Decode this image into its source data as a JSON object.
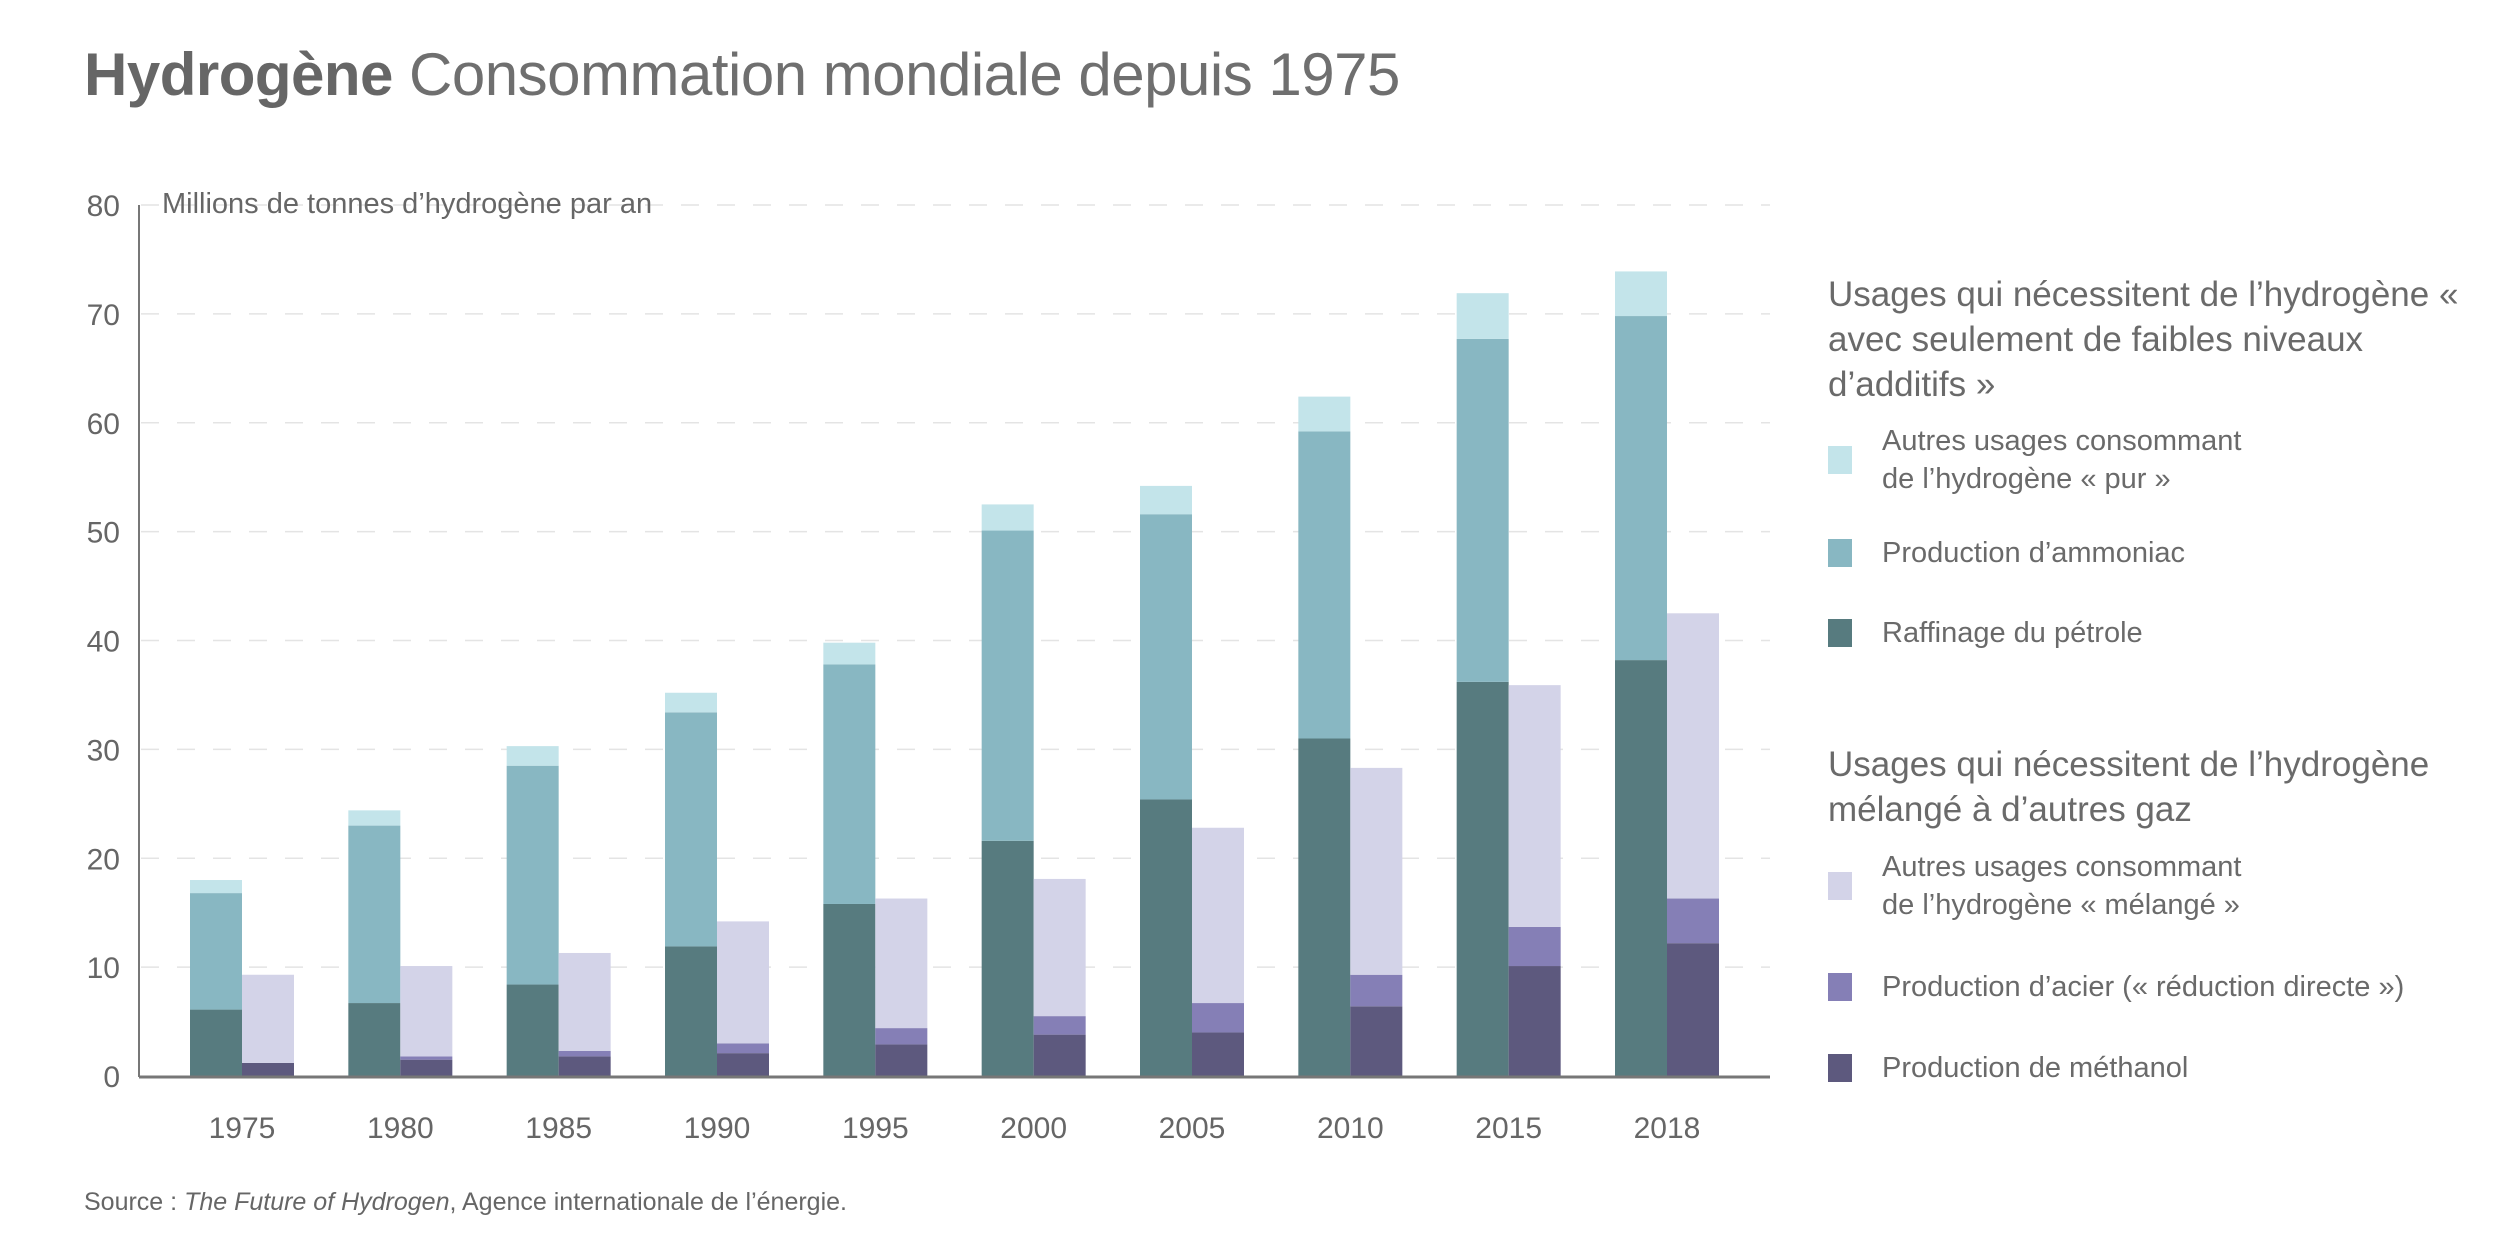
{
  "title": {
    "bold": "Hydrogène",
    "rest": " Consommation mondiale depuis 1975"
  },
  "source": {
    "prefix": "Source : ",
    "italic": "The Future of Hydrogen",
    "suffix": ", Agence internationale de l’énergie."
  },
  "legend": {
    "group1": {
      "heading": "Usages qui nécessitent de l’hydrogène « avec seulement de faibles niveaux d’additifs »",
      "items": [
        {
          "label": "Autres usages consommant\nde l’hydrogène « pur »",
          "color": "#c3e4ea"
        },
        {
          "label": "Production d’ammoniac",
          "color": "#88b7c2"
        },
        {
          "label": "Raffinage du pétrole",
          "color": "#577b7f"
        }
      ]
    },
    "group2": {
      "heading": "Usages qui nécessitent de l’hydrogène mélangé à d’autres gaz",
      "items": [
        {
          "label": "Autres usages consommant\nde l’hydrogène « mélangé »",
          "color": "#d3d3e8"
        },
        {
          "label": "Production d’acier (« réduction directe »)",
          "color": "#857fb6"
        },
        {
          "label": "Production de méthanol",
          "color": "#5d597e"
        }
      ]
    }
  },
  "chart_data": {
    "type": "bar",
    "stacked": true,
    "grouped": true,
    "title": "Hydrogène Consommation mondiale depuis 1975",
    "ylabel": "Millions de tonnes d’hydrogène par an",
    "xlabel": "",
    "ylim": [
      0,
      80
    ],
    "yticks": [
      0,
      10,
      20,
      30,
      40,
      50,
      60,
      70,
      80
    ],
    "grid": true,
    "legend_position": "right",
    "categories": [
      "1975",
      "1980",
      "1985",
      "1990",
      "1995",
      "2000",
      "2005",
      "2010",
      "2015",
      "2018"
    ],
    "groups": [
      {
        "name": "Usages qui nécessitent de l’hydrogène « avec seulement de faibles niveaux d’additifs »",
        "position": "left",
        "series": [
          {
            "name": "Raffinage du pétrole",
            "color": "#577b7f",
            "values": [
              6.1,
              6.7,
              8.4,
              11.9,
              15.8,
              21.6,
              25.4,
              31.0,
              36.2,
              38.2
            ]
          },
          {
            "name": "Production d’ammoniac",
            "color": "#88b7c2",
            "values": [
              10.7,
              16.3,
              20.1,
              21.5,
              22.0,
              28.5,
              26.2,
              28.2,
              31.5,
              31.6
            ]
          },
          {
            "name": "Autres usages consommant de l’hydrogène « pur »",
            "color": "#c3e4ea",
            "values": [
              1.2,
              1.4,
              1.8,
              1.8,
              2.0,
              2.4,
              2.6,
              3.2,
              4.2,
              4.1
            ]
          }
        ]
      },
      {
        "name": "Usages qui nécessitent de l’hydrogène mélangé à d’autres gaz",
        "position": "right",
        "series": [
          {
            "name": "Production de méthanol",
            "color": "#5d597e",
            "values": [
              1.2,
              1.5,
              1.8,
              2.1,
              2.9,
              3.8,
              4.0,
              6.4,
              10.1,
              12.2
            ]
          },
          {
            "name": "Production d’acier (« réduction directe »)",
            "color": "#857fb6",
            "values": [
              0.0,
              0.3,
              0.5,
              0.9,
              1.5,
              1.7,
              2.7,
              2.9,
              3.6,
              4.1
            ]
          },
          {
            "name": "Autres usages consommant de l’hydrogène « mélangé »",
            "color": "#d3d3e8",
            "values": [
              8.1,
              8.3,
              9.0,
              11.2,
              11.9,
              12.6,
              16.1,
              19.0,
              22.2,
              26.2
            ]
          }
        ]
      }
    ]
  }
}
